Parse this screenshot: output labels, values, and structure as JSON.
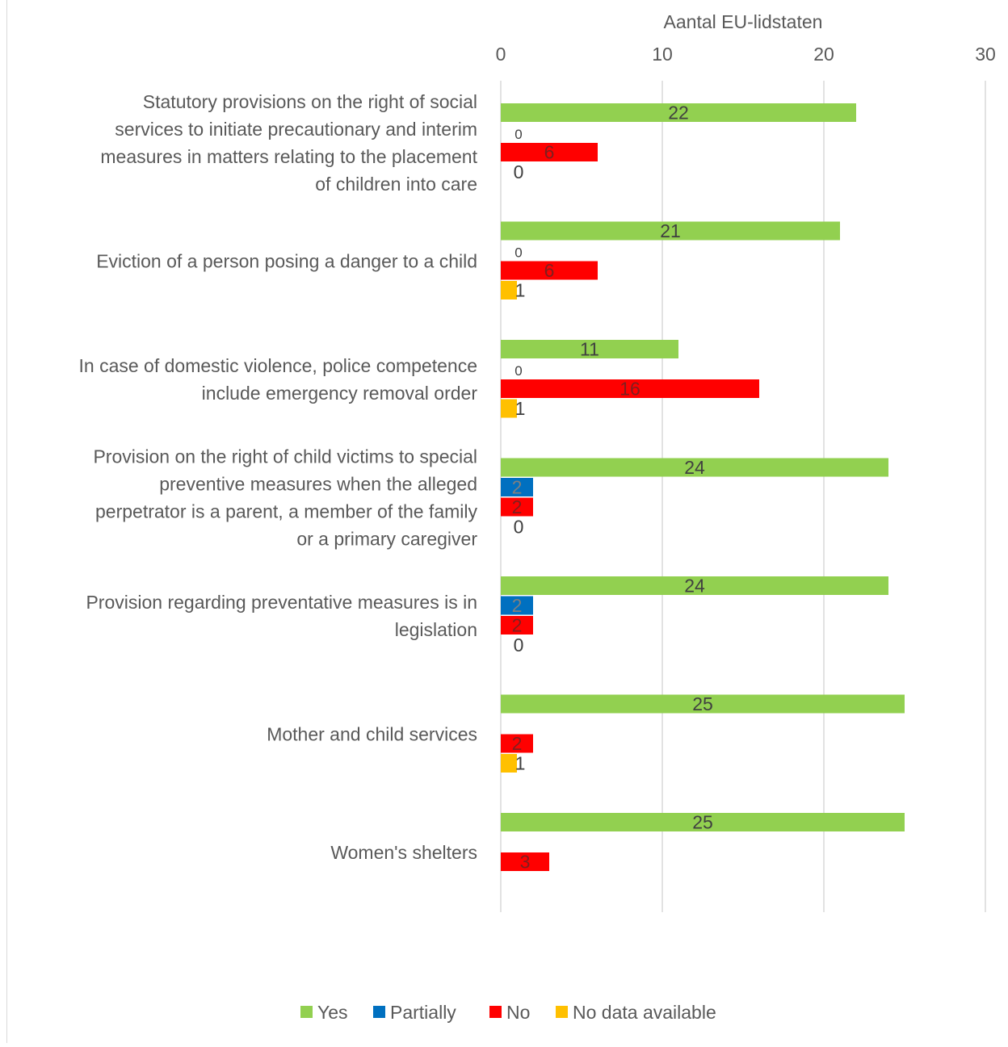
{
  "chart_data": {
    "type": "bar",
    "orientation": "horizontal",
    "title": "",
    "xlabel": "Aantal EU-lidstaten",
    "ylabel": "",
    "xlim": [
      0,
      30
    ],
    "x_ticks": [
      0,
      10,
      20,
      30
    ],
    "x_tick_labels": [
      "0",
      "10",
      "20",
      "30"
    ],
    "x_axis_position": "top",
    "grid": true,
    "legend_position": "bottom",
    "categories": [
      [
        "Statutory provisions on the right of social",
        "services to initiate precautionary and interim",
        "measures in matters relating to the placement",
        "of children into care"
      ],
      [
        "Eviction of a person posing a danger to a child"
      ],
      [
        "In case of domestic violence, police competence",
        "include emergency removal order"
      ],
      [
        "Provision on the right of child victims to special",
        "preventive measures when the alleged",
        "perpetrator is a parent, a member of the family",
        "or a primary caregiver"
      ],
      [
        "Provision regarding preventative measures is in",
        "legislation"
      ],
      [
        "Mother and child services"
      ],
      [
        "Women's shelters"
      ]
    ],
    "series": [
      {
        "name": "Yes",
        "color": "#92d050",
        "values": [
          22,
          21,
          11,
          24,
          24,
          25,
          25
        ],
        "labels": [
          "22",
          "21",
          "11",
          "24",
          "24",
          "25",
          "25"
        ]
      },
      {
        "name": "Partially",
        "color": "#0070c0",
        "values": [
          0,
          0,
          0,
          2,
          2,
          0,
          0
        ],
        "labels": [
          "0",
          "0",
          "0",
          "2",
          "2",
          null,
          null
        ]
      },
      {
        "name": "No",
        "color": "#ff0000",
        "values": [
          6,
          6,
          16,
          2,
          2,
          2,
          3
        ],
        "labels": [
          "6",
          "6",
          "16",
          "2",
          "2",
          "2",
          "3"
        ]
      },
      {
        "name": "No data available",
        "color": "#ffc000",
        "values": [
          0,
          1,
          1,
          0,
          0,
          1,
          0
        ],
        "labels": [
          "0",
          "1",
          "1",
          "0",
          "0",
          "1",
          null
        ]
      }
    ]
  }
}
